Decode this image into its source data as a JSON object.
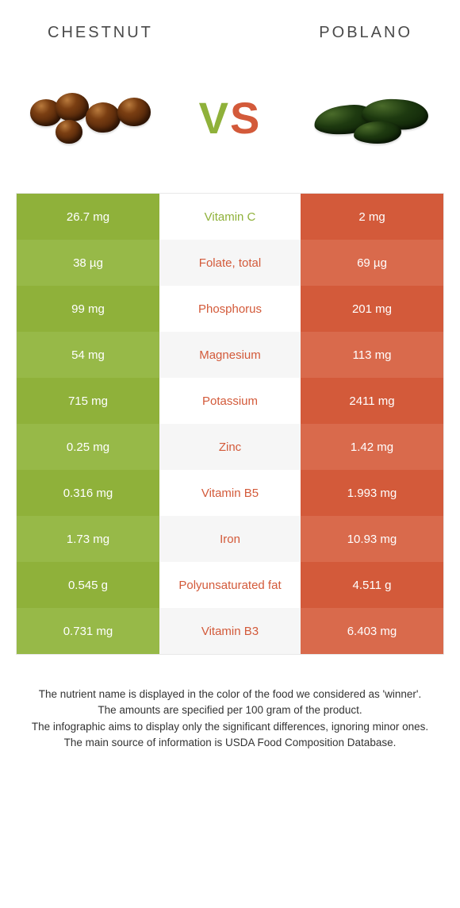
{
  "colors": {
    "green": "#8fb13a",
    "green_alt": "#97b948",
    "orange": "#d35a3a",
    "orange_alt": "#d96a4c",
    "text": "#333333",
    "bg": "#ffffff",
    "row_alt_bg": "#f6f6f6",
    "border": "#e8e8e8"
  },
  "header": {
    "left": "CHESTNUT",
    "right": "POBLANO"
  },
  "vs": {
    "v": "V",
    "s": "S"
  },
  "rows": [
    {
      "left": "26.7 mg",
      "label": "Vitamin C",
      "right": "2 mg",
      "winner": "left"
    },
    {
      "left": "38 µg",
      "label": "Folate, total",
      "right": "69 µg",
      "winner": "right"
    },
    {
      "left": "99 mg",
      "label": "Phosphorus",
      "right": "201 mg",
      "winner": "right"
    },
    {
      "left": "54 mg",
      "label": "Magnesium",
      "right": "113 mg",
      "winner": "right"
    },
    {
      "left": "715 mg",
      "label": "Potassium",
      "right": "2411 mg",
      "winner": "right"
    },
    {
      "left": "0.25 mg",
      "label": "Zinc",
      "right": "1.42 mg",
      "winner": "right"
    },
    {
      "left": "0.316 mg",
      "label": "Vitamin B5",
      "right": "1.993 mg",
      "winner": "right"
    },
    {
      "left": "1.73 mg",
      "label": "Iron",
      "right": "10.93 mg",
      "winner": "right"
    },
    {
      "left": "0.545 g",
      "label": "Polyunsaturated fat",
      "right": "4.511 g",
      "winner": "right"
    },
    {
      "left": "0.731 mg",
      "label": "Vitamin B3",
      "right": "6.403 mg",
      "winner": "right"
    }
  ],
  "footnotes": [
    "The nutrient name is displayed in the color of the food we considered as 'winner'.",
    "The amounts are specified per 100 gram of the product.",
    "The infographic aims to display only the significant differences, ignoring minor ones.",
    "The main source of information is USDA Food Composition Database."
  ]
}
